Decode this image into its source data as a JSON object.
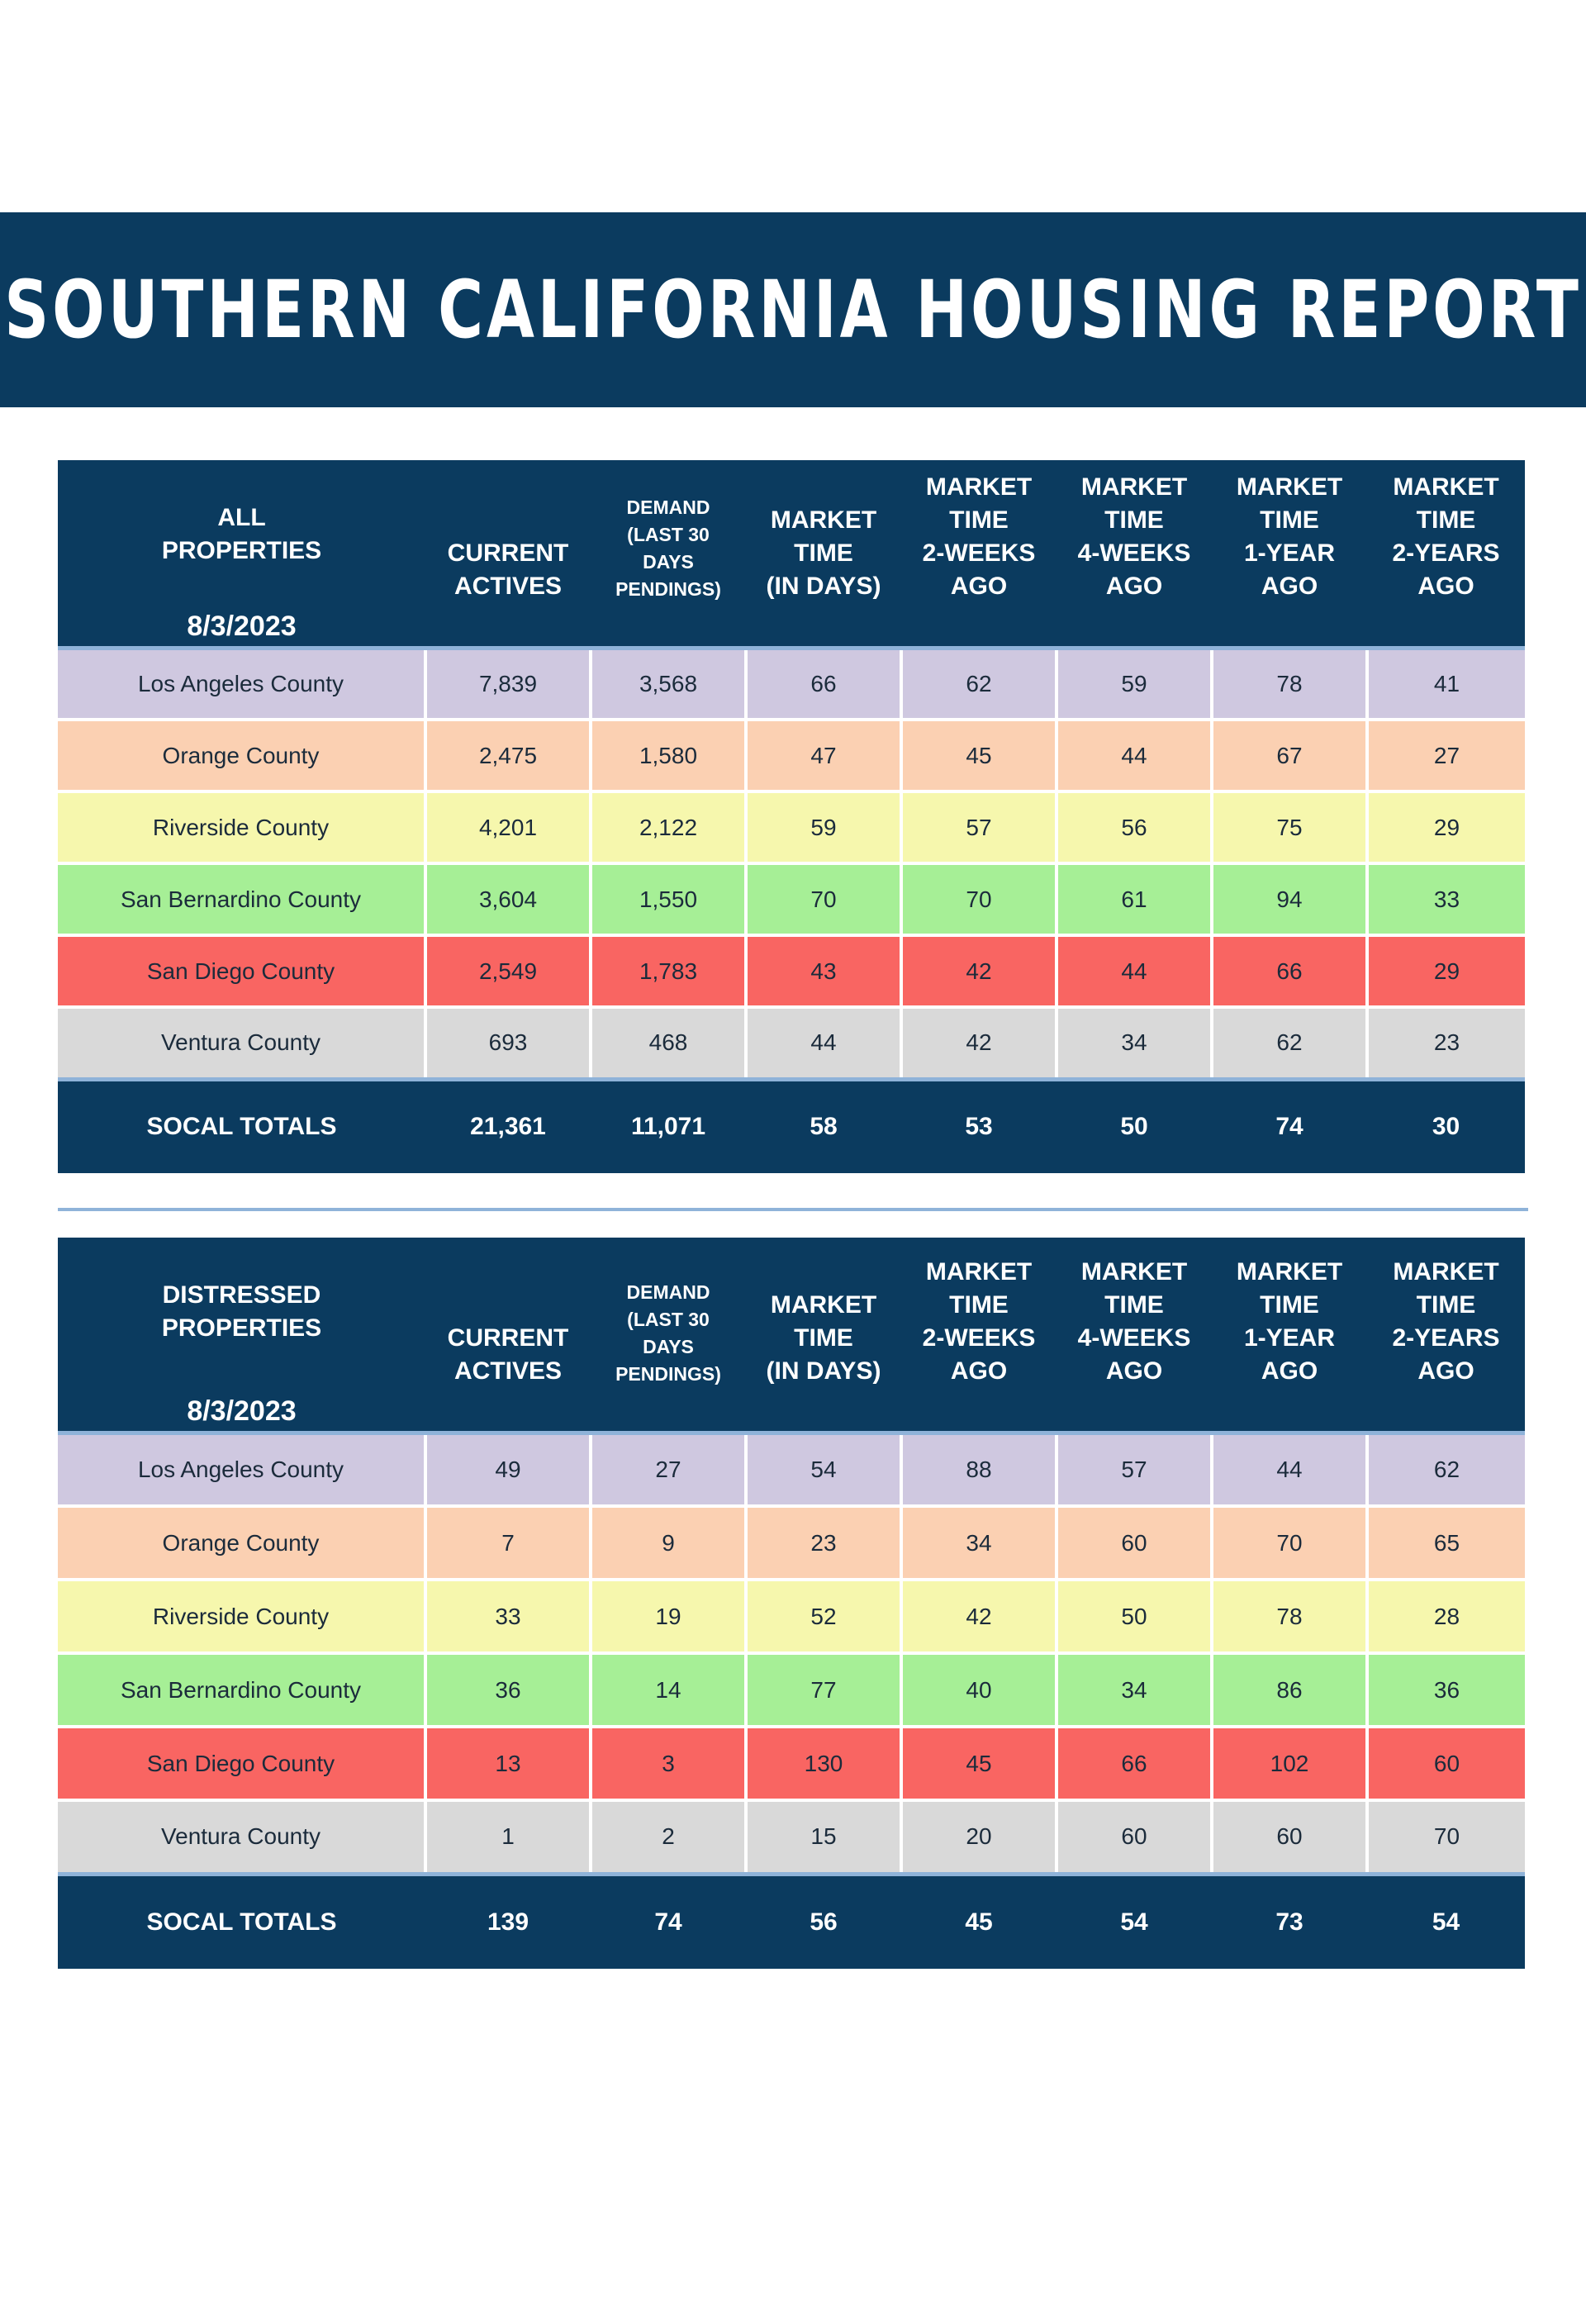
{
  "title": "SOUTHERN CALIFORNIA HOUSING REPORT",
  "colors": {
    "header_bg": "#0b3b5f",
    "accent_line": "#8fb3d9",
    "row_colors": [
      "#cfc8e0",
      "#fbd0b2",
      "#f6f7ad",
      "#a6ef96",
      "#f96562",
      "#d9d9d9"
    ]
  },
  "all_properties": {
    "label": "ALL\nPROPERTIES",
    "date": "8/3/2023",
    "columns": [
      "CURRENT\nACTIVES",
      "DEMAND\n(LAST 30\nDAYS\nPENDINGS)",
      "MARKET\nTIME\n(IN DAYS)",
      "MARKET\nTIME\n2-WEEKS\nAGO",
      "MARKET\nTIME\n4-WEEKS\nAGO",
      "MARKET\nTIME\n1-YEAR\nAGO",
      "MARKET\nTIME\n2-YEARS\nAGO"
    ],
    "rows": [
      {
        "name": "Los Angeles County",
        "values": [
          "7,839",
          "3,568",
          "66",
          "62",
          "59",
          "78",
          "41"
        ]
      },
      {
        "name": "Orange County",
        "values": [
          "2,475",
          "1,580",
          "47",
          "45",
          "44",
          "67",
          "27"
        ]
      },
      {
        "name": "Riverside County",
        "values": [
          "4,201",
          "2,122",
          "59",
          "57",
          "56",
          "75",
          "29"
        ]
      },
      {
        "name": "San Bernardino County",
        "values": [
          "3,604",
          "1,550",
          "70",
          "70",
          "61",
          "94",
          "33"
        ]
      },
      {
        "name": "San Diego County",
        "values": [
          "2,549",
          "1,783",
          "43",
          "42",
          "44",
          "66",
          "29"
        ]
      },
      {
        "name": "Ventura County",
        "values": [
          "693",
          "468",
          "44",
          "42",
          "34",
          "62",
          "23"
        ]
      }
    ],
    "totals": {
      "name": "SOCAL TOTALS",
      "values": [
        "21,361",
        "11,071",
        "58",
        "53",
        "50",
        "74",
        "30"
      ]
    }
  },
  "distressed_properties": {
    "label": "DISTRESSED\nPROPERTIES",
    "date": "8/3/2023",
    "columns": [
      "CURRENT\nACTIVES",
      "DEMAND\n(LAST 30\nDAYS\nPENDINGS)",
      "MARKET\nTIME\n(IN DAYS)",
      "MARKET\nTIME\n2-WEEKS\nAGO",
      "MARKET\nTIME\n4-WEEKS\nAGO",
      "MARKET\nTIME\n1-YEAR\nAGO",
      "MARKET\nTIME\n2-YEARS\nAGO"
    ],
    "rows": [
      {
        "name": "Los Angeles County",
        "values": [
          "49",
          "27",
          "54",
          "88",
          "57",
          "44",
          "62"
        ]
      },
      {
        "name": "Orange County",
        "values": [
          "7",
          "9",
          "23",
          "34",
          "60",
          "70",
          "65"
        ]
      },
      {
        "name": "Riverside County",
        "values": [
          "33",
          "19",
          "52",
          "42",
          "50",
          "78",
          "28"
        ]
      },
      {
        "name": "San Bernardino County",
        "values": [
          "36",
          "14",
          "77",
          "40",
          "34",
          "86",
          "36"
        ]
      },
      {
        "name": "San Diego County",
        "values": [
          "13",
          "3",
          "130",
          "45",
          "66",
          "102",
          "60"
        ]
      },
      {
        "name": "Ventura County",
        "values": [
          "1",
          "2",
          "15",
          "20",
          "60",
          "60",
          "70"
        ]
      }
    ],
    "totals": {
      "name": "SOCAL TOTALS",
      "values": [
        "139",
        "74",
        "56",
        "45",
        "54",
        "73",
        "54"
      ]
    }
  }
}
